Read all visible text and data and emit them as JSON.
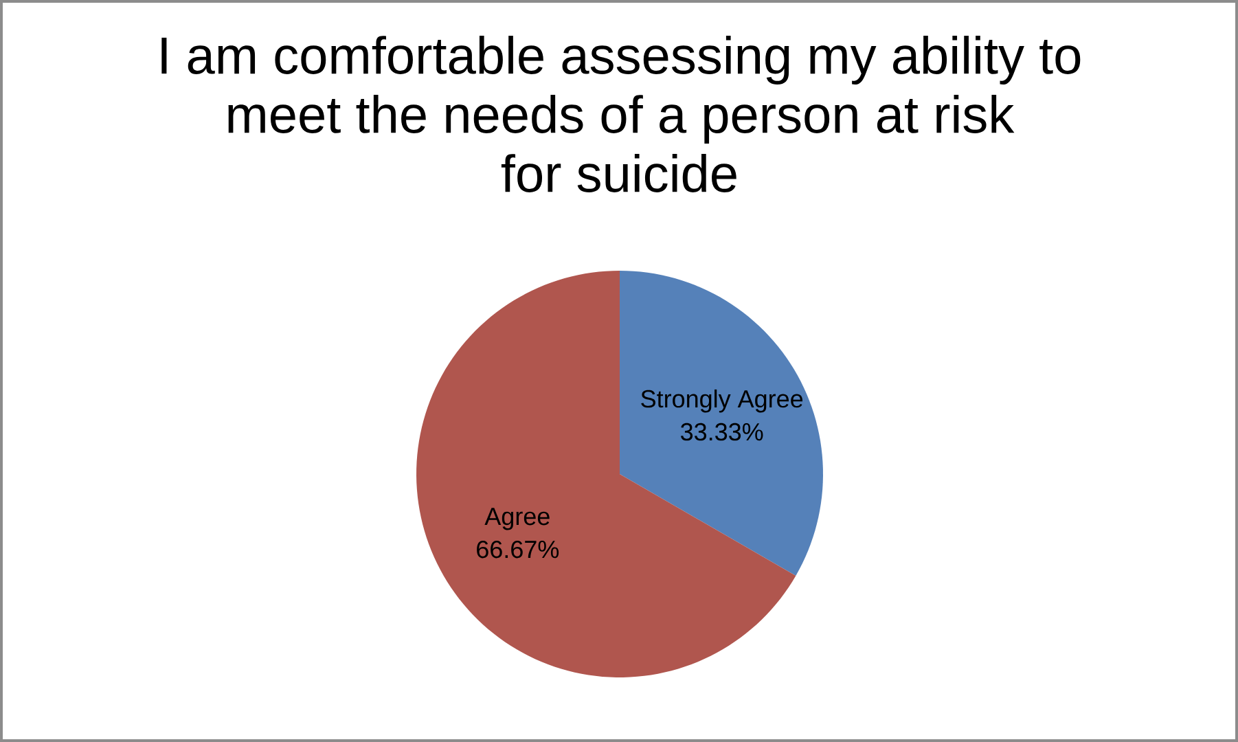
{
  "chart_data": {
    "type": "pie",
    "title": "I am comfortable assessing my ability to\nmeet the needs of a person at risk\nfor suicide",
    "categories": [
      "Strongly Agree",
      "Agree"
    ],
    "values": [
      33.33,
      66.67
    ],
    "colors": [
      "#5581b9",
      "#b0564e"
    ],
    "value_labels": [
      "33.33%",
      "66.67%"
    ]
  }
}
